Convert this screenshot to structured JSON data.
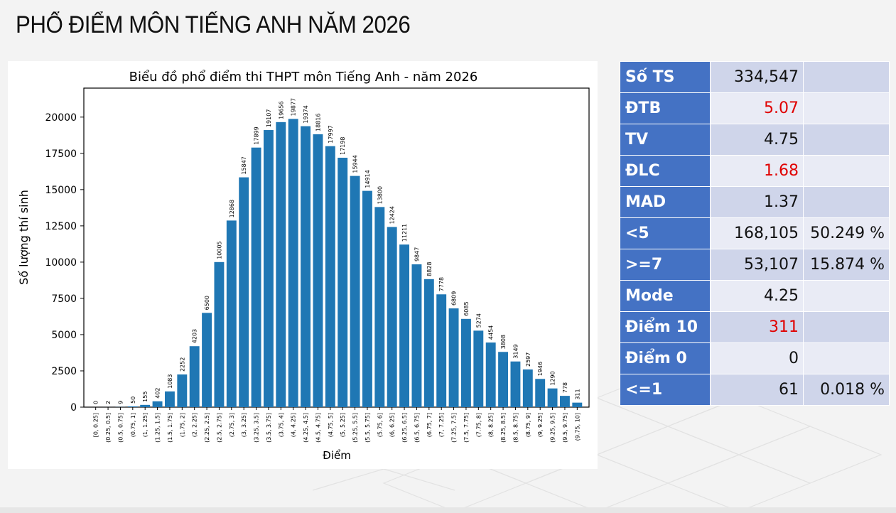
{
  "slide_title": "PHỔ ĐIỂM MÔN TIẾNG ANH NĂM 2026",
  "colors": {
    "bar": "#1f77b4",
    "table_header": "#4472c4",
    "row_odd": "#cfd5ea",
    "row_even": "#e9ebf5",
    "highlight": "#e00000"
  },
  "chart_data": {
    "type": "bar",
    "title": "Biểu đồ phổ điểm thi THPT môn Tiếng Anh - năm 2026",
    "xlabel": "Điểm",
    "ylabel": "Số lượng thí sinh",
    "ylim": [
      0,
      22000
    ],
    "yticks": [
      0,
      2500,
      5000,
      7500,
      10000,
      12500,
      15000,
      17500,
      20000
    ],
    "categories": [
      "[0, 0.25]",
      "(0.25, 0.5]",
      "(0.5, 0.75]",
      "(0.75, 1]",
      "(1, 1.25]",
      "(1.25, 1.5]",
      "(1.5, 1.75]",
      "(1.75, 2]",
      "(2, 2.25]",
      "(2.25, 2.5]",
      "(2.5, 2.75]",
      "(2.75, 3]",
      "(3, 3.25]",
      "(3.25, 3.5]",
      "(3.5, 3.75]",
      "(3.75, 4]",
      "(4, 4.25]",
      "(4.25, 4.5]",
      "(4.5, 4.75]",
      "(4.75, 5]",
      "(5, 5.25]",
      "(5.25, 5.5]",
      "(5.5, 5.75]",
      "(5.75, 6]",
      "(6, 6.25]",
      "(6.25, 6.5]",
      "(6.5, 6.75]",
      "(6.75, 7]",
      "(7, 7.25]",
      "(7.25, 7.5]",
      "(7.5, 7.75]",
      "(7.75, 8]",
      "(8, 8.25]",
      "(8.25, 8.5]",
      "(8.5, 8.75]",
      "(8.75, 9]",
      "(9, 9.25]",
      "(9.25, 9.5]",
      "(9.5, 9.75]",
      "(9.75, 10]"
    ],
    "values": [
      0,
      2,
      9,
      50,
      155,
      402,
      1083,
      2252,
      4203,
      6500,
      10005,
      12868,
      15847,
      17899,
      19107,
      19656,
      19877,
      19374,
      18816,
      17997,
      17198,
      15944,
      14914,
      13800,
      12424,
      11211,
      9847,
      8828,
      7778,
      6809,
      6085,
      5274,
      4454,
      3808,
      3149,
      2597,
      1946,
      1290,
      778,
      311
    ],
    "grid": false
  },
  "stats": [
    {
      "label": "Số TS",
      "value": "334,547",
      "pct": "",
      "highlight": false
    },
    {
      "label": "ĐTB",
      "value": "5.07",
      "pct": "",
      "highlight": true
    },
    {
      "label": "TV",
      "value": "4.75",
      "pct": "",
      "highlight": false
    },
    {
      "label": "ĐLC",
      "value": "1.68",
      "pct": "",
      "highlight": true
    },
    {
      "label": "MAD",
      "value": "1.37",
      "pct": "",
      "highlight": false
    },
    {
      "label": "<5",
      "value": "168,105",
      "pct": "50.249 %",
      "highlight": false
    },
    {
      "label": ">=7",
      "value": "53,107",
      "pct": "15.874 %",
      "highlight": false
    },
    {
      "label": "Mode",
      "value": "4.25",
      "pct": "",
      "highlight": false
    },
    {
      "label": "Điểm 10",
      "value": "311",
      "pct": "",
      "highlight": true
    },
    {
      "label": "Điểm 0",
      "value": "0",
      "pct": "",
      "highlight": false
    },
    {
      "label": "<=1",
      "value": "61",
      "pct": "0.018 %",
      "highlight": false
    }
  ]
}
